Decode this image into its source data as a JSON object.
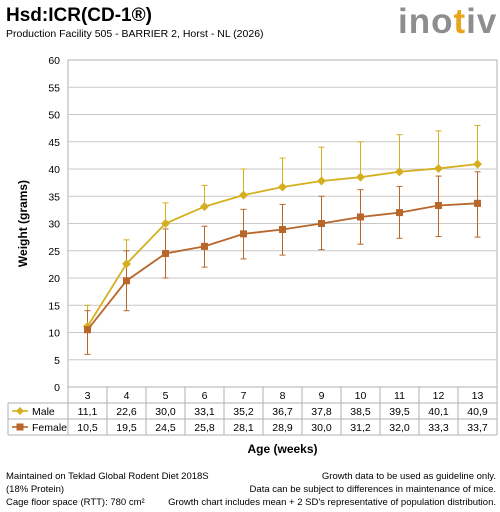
{
  "header": {
    "title": "Hsd:ICR(CD-1®)",
    "subtitle": "Production Facility 505 - BARRIER 2, Horst - NL (2026)"
  },
  "logo": {
    "text_main": "ino",
    "text_accent": "t",
    "text_end": "iv",
    "color_main": "#8e8e8e",
    "color_accent": "#e9a51c"
  },
  "chart_data": {
    "type": "line",
    "title": "",
    "xlabel": "Age (weeks)",
    "ylabel": "Weight (grams)",
    "ylim": [
      0,
      60
    ],
    "yticks": [
      "0",
      "5",
      "10",
      "15",
      "20",
      "25",
      "30",
      "35",
      "40",
      "45",
      "50",
      "55",
      "60"
    ],
    "categories": [
      "3",
      "4",
      "5",
      "6",
      "7",
      "8",
      "9",
      "10",
      "11",
      "12",
      "13"
    ],
    "grid": true,
    "legend": "table-below",
    "series": [
      {
        "name": "Male",
        "color": "#d4b020",
        "marker": "diamond",
        "values": [
          11.1,
          22.6,
          30.0,
          33.1,
          35.2,
          36.7,
          37.8,
          38.5,
          39.5,
          40.1,
          40.9
        ],
        "labels": [
          "11,1",
          "22,6",
          "30,0",
          "33,1",
          "35,2",
          "36,7",
          "37,8",
          "38,5",
          "39,5",
          "40,1",
          "40,9"
        ],
        "error_high": [
          15.0,
          27.0,
          33.8,
          37.0,
          40.0,
          42.0,
          44.0,
          45.0,
          46.3,
          47.0,
          48.0
        ]
      },
      {
        "name": "Female",
        "color": "#b8662a",
        "marker": "square",
        "values": [
          10.5,
          19.5,
          24.5,
          25.8,
          28.1,
          28.9,
          30.0,
          31.2,
          32.0,
          33.3,
          33.7
        ],
        "labels": [
          "10,5",
          "19,5",
          "24,5",
          "25,8",
          "28,1",
          "28,9",
          "30,0",
          "31,2",
          "32,0",
          "33,3",
          "33,7"
        ],
        "error_low": [
          6.0,
          14.0,
          20.0,
          22.0,
          23.5,
          24.2,
          25.2,
          26.2,
          27.3,
          27.6,
          27.5
        ],
        "error_high": [
          14.0,
          25.0,
          29.0,
          29.5,
          32.6,
          33.5,
          35.0,
          36.2,
          36.8,
          38.7,
          39.5
        ]
      }
    ]
  },
  "footer": {
    "left": [
      "Maintained on Teklad Global Rodent Diet 2018S",
      "(18% Protein)",
      "Cage floor space (RTT): 780 cm²"
    ],
    "right": [
      "Growth data to be used as guideline only.",
      "Data can be subject to differences in maintenance of mice.",
      "Growth chart includes mean + 2 SD's representative of population distribution."
    ]
  }
}
